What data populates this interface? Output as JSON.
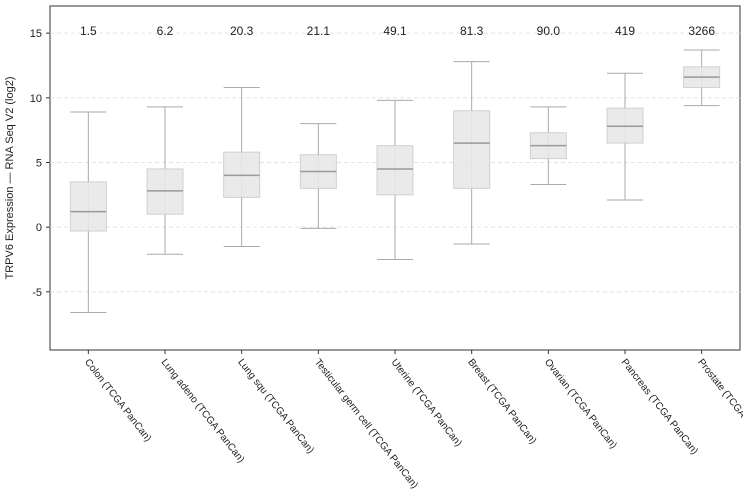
{
  "chart_data": {
    "type": "box",
    "y_label": "TRPV6 Expression — RNA Seq V2 (log2)",
    "categories": [
      "Colon (TCGA PanCan)",
      "Lung adeno (TCGA PanCan)",
      "Lung squ (TCGA PanCan)",
      "Testicular germ cell (TCGA PanCan)",
      "Uterine (TCGA PanCan)",
      "Breast (TCGA PanCan)",
      "Ovarian (TCGA PanCan)",
      "Pancreas (TCGA PanCan)",
      "Prostate (TCGA PanCan)"
    ],
    "annotations": [
      "1.5",
      "6.2",
      "20.3",
      "21.1",
      "49.1",
      "81.3",
      "90.0",
      "419",
      "3266"
    ],
    "boxes": [
      {
        "whisker_low": -6.6,
        "q1": -0.3,
        "median": 1.2,
        "q3": 3.5,
        "whisker_high": 8.9
      },
      {
        "whisker_low": -2.1,
        "q1": 1.0,
        "median": 2.8,
        "q3": 4.5,
        "whisker_high": 9.3
      },
      {
        "whisker_low": -1.5,
        "q1": 2.3,
        "median": 4.0,
        "q3": 5.8,
        "whisker_high": 10.8
      },
      {
        "whisker_low": -0.1,
        "q1": 3.0,
        "median": 4.3,
        "q3": 5.6,
        "whisker_high": 8.0
      },
      {
        "whisker_low": -2.5,
        "q1": 2.5,
        "median": 4.5,
        "q3": 6.3,
        "whisker_high": 9.8
      },
      {
        "whisker_low": -1.3,
        "q1": 3.0,
        "median": 6.5,
        "q3": 9.0,
        "whisker_high": 12.8
      },
      {
        "whisker_low": 3.3,
        "q1": 5.3,
        "median": 6.3,
        "q3": 7.3,
        "whisker_high": 9.3
      },
      {
        "whisker_low": 2.1,
        "q1": 6.5,
        "median": 7.8,
        "q3": 9.2,
        "whisker_high": 11.9
      },
      {
        "whisker_low": 9.4,
        "q1": 10.8,
        "median": 11.6,
        "q3": 12.4,
        "whisker_high": 13.7
      }
    ],
    "box_color": "#e8e8e8",
    "ylim": [
      -9.5,
      17.1
    ],
    "yticks": [
      -5,
      0,
      5,
      10,
      15
    ],
    "grid": true
  }
}
